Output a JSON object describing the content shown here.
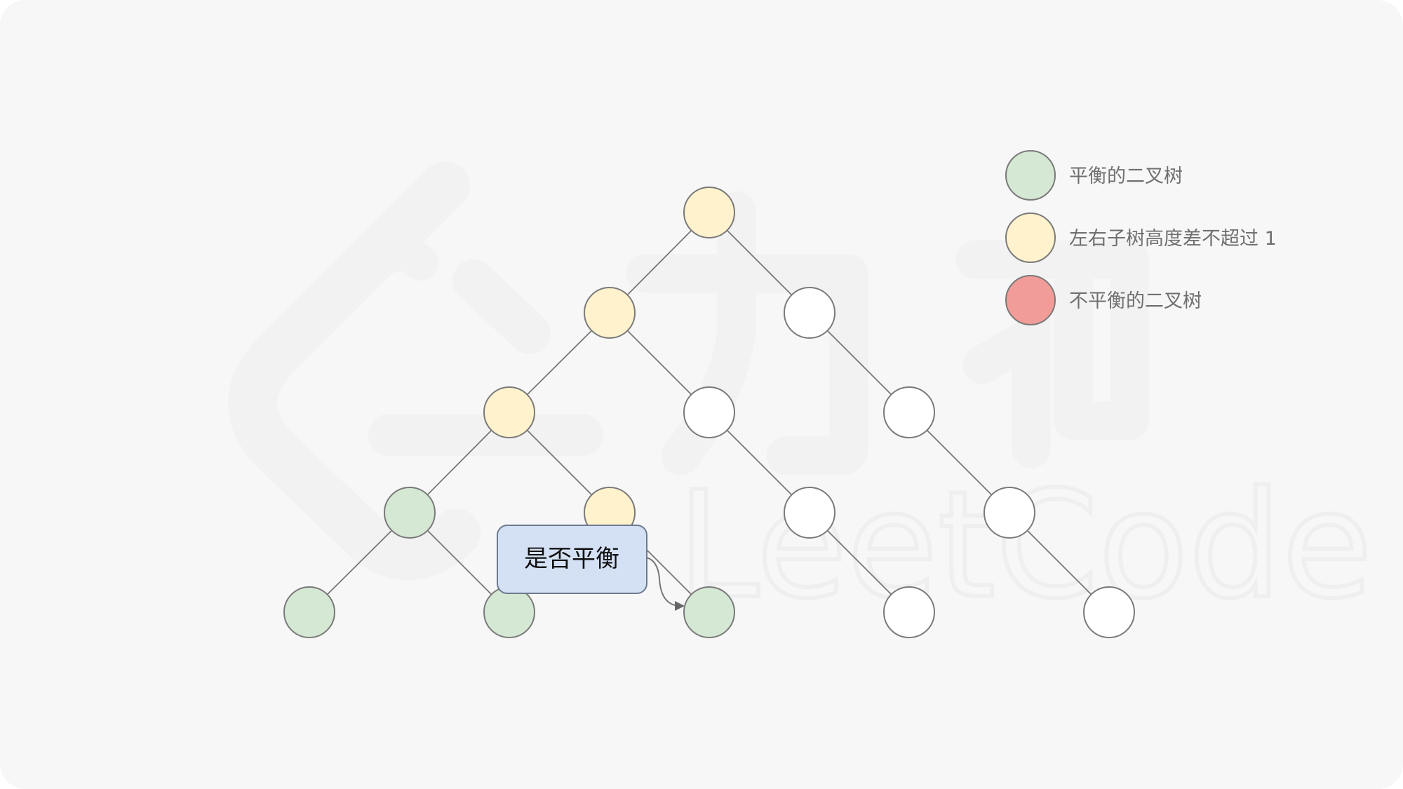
{
  "colors": {
    "background": "#f7f7f7",
    "edge": "#777777",
    "node_border": "#7a7a7a",
    "balanced": "#d5e8d4",
    "diff_ok": "#fff2cc",
    "unbalanced": "#f19c99",
    "unvisited": "#ffffff",
    "callout_fill": "#d4e1f4"
  },
  "legend": [
    {
      "label": "平衡的二叉树",
      "color": "#d5e8d4"
    },
    {
      "label": "左右子树高度差不超过 1",
      "color": "#fff2cc"
    },
    {
      "label": "不平衡的二叉树",
      "color": "#f19c99"
    }
  ],
  "tree": {
    "nodes": [
      {
        "id": "n1",
        "state": "diff_ok"
      },
      {
        "id": "n2",
        "state": "diff_ok"
      },
      {
        "id": "n3",
        "state": "unvisited"
      },
      {
        "id": "n4",
        "state": "diff_ok"
      },
      {
        "id": "n5",
        "state": "unvisited"
      },
      {
        "id": "n6",
        "state": "unvisited"
      },
      {
        "id": "n7",
        "state": "balanced"
      },
      {
        "id": "n8",
        "state": "diff_ok"
      },
      {
        "id": "n9",
        "state": "unvisited"
      },
      {
        "id": "n10",
        "state": "unvisited"
      },
      {
        "id": "n11",
        "state": "balanced"
      },
      {
        "id": "n12",
        "state": "balanced"
      },
      {
        "id": "n13",
        "state": "balanced"
      },
      {
        "id": "n14",
        "state": "unvisited"
      },
      {
        "id": "n15",
        "state": "unvisited"
      }
    ],
    "edges": [
      [
        "n1",
        "n2"
      ],
      [
        "n1",
        "n3"
      ],
      [
        "n2",
        "n4"
      ],
      [
        "n2",
        "n5"
      ],
      [
        "n3",
        "n6"
      ],
      [
        "n4",
        "n7"
      ],
      [
        "n4",
        "n8"
      ],
      [
        "n5",
        "n9"
      ],
      [
        "n6",
        "n10"
      ],
      [
        "n7",
        "n11"
      ],
      [
        "n7",
        "n12"
      ],
      [
        "n8",
        "n13"
      ],
      [
        "n9",
        "n14"
      ],
      [
        "n10",
        "n15"
      ]
    ]
  },
  "callout": {
    "text": "是否平衡",
    "target": "n13"
  },
  "watermark": {
    "text": "LeetCode",
    "brand_chars": "力扣"
  }
}
